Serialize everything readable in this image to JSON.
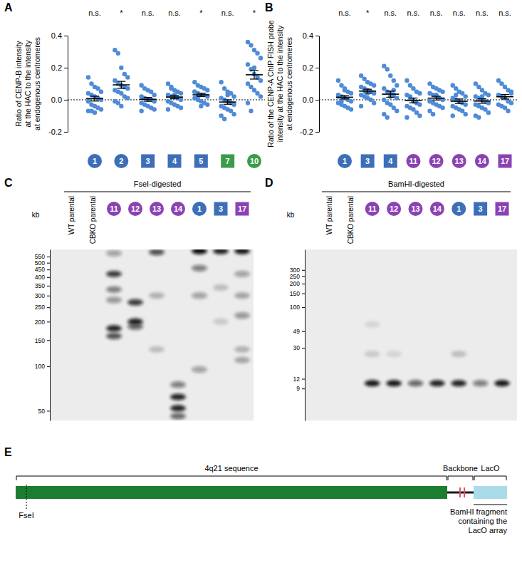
{
  "chart_data": [
    {
      "panel": "A",
      "type": "scatter",
      "color": "#4f8bd6",
      "y_label": [
        "Ratio of CENP-B intensity",
        "at the HAC to the intensity",
        "at endogenous centromeres"
      ],
      "ylim": [
        -0.2,
        0.4
      ],
      "yticks": [
        -0.2,
        {
          "value": 0,
          "label": "0.0"
        },
        0.2,
        0.4
      ],
      "reference_line": 0,
      "series": [
        {
          "name": "1",
          "color": "#3c6fb8",
          "marker": "circle",
          "significance": "n.s.",
          "mean": 0.007,
          "sem": 0.015,
          "values": [
            0.14,
            0.1,
            0.08,
            0.07,
            0.05,
            0.04,
            0.03,
            0.02,
            0.01,
            0.0,
            -0.01,
            -0.03,
            -0.04,
            -0.05,
            -0.06,
            -0.07,
            -0.07,
            -0.08
          ]
        },
        {
          "name": "2",
          "color": "#3c6fb8",
          "marker": "circle",
          "significance": "*",
          "mean": 0.093,
          "sem": 0.022,
          "values": [
            0.31,
            0.29,
            0.2,
            0.16,
            0.14,
            0.12,
            0.1,
            0.09,
            0.08,
            0.07,
            0.06,
            0.05,
            0.04,
            0.02,
            0.01,
            -0.01,
            -0.02,
            -0.04
          ]
        },
        {
          "name": "3",
          "color": "#3c6fb8",
          "marker": "square",
          "significance": "n.s.",
          "mean": 0.003,
          "sem": 0.012,
          "values": [
            0.09,
            0.07,
            0.06,
            0.05,
            0.03,
            0.02,
            0.01,
            0.0,
            0.0,
            -0.01,
            -0.02,
            -0.03,
            -0.04,
            -0.05,
            -0.06,
            -0.07
          ]
        },
        {
          "name": "4",
          "color": "#3c6fb8",
          "marker": "square",
          "significance": "n.s.",
          "mean": 0.017,
          "sem": 0.011,
          "values": [
            0.1,
            0.08,
            0.06,
            0.05,
            0.04,
            0.03,
            0.02,
            0.02,
            0.01,
            0.0,
            -0.01,
            -0.02,
            -0.03,
            -0.04,
            -0.05,
            -0.06,
            0.07,
            0.03
          ]
        },
        {
          "name": "5",
          "color": "#3c6fb8",
          "marker": "square",
          "significance": "*",
          "mean": 0.031,
          "sem": 0.01,
          "values": [
            0.11,
            0.09,
            0.08,
            0.07,
            0.06,
            0.05,
            0.04,
            0.03,
            0.03,
            0.02,
            0.01,
            0.0,
            -0.01,
            -0.02,
            -0.03,
            0.05,
            0.02,
            -0.04
          ]
        },
        {
          "name": "7",
          "color": "#3a9c48",
          "marker": "square",
          "significance": "n.s.",
          "mean": -0.014,
          "sem": 0.014,
          "values": [
            0.11,
            0.07,
            0.05,
            0.04,
            0.02,
            0.01,
            0.0,
            -0.01,
            -0.02,
            -0.03,
            -0.04,
            -0.05,
            -0.06,
            -0.07,
            -0.09,
            -0.1,
            -0.12,
            0.03
          ]
        },
        {
          "name": "10",
          "color": "#3a9c48",
          "marker": "circle",
          "significance": "*",
          "mean": 0.156,
          "sem": 0.027,
          "values": [
            0.36,
            0.34,
            0.31,
            0.29,
            0.26,
            0.22,
            0.19,
            0.16,
            0.14,
            0.12,
            0.1,
            0.08,
            0.06,
            0.04,
            0.02,
            -0.02,
            -0.07,
            0.2
          ]
        }
      ]
    },
    {
      "panel": "B",
      "type": "scatter",
      "color": "#4f8bd6",
      "y_label": [
        "Ratio of the CENP-A ChIP FISH probe",
        "intensity at the HAC to the intensity",
        "at endogenous centromeres"
      ],
      "ylim": [
        -0.2,
        0.4
      ],
      "yticks": [
        -0.2,
        {
          "value": 0,
          "label": "0.0"
        },
        0.2,
        0.4
      ],
      "reference_line": 0,
      "series": [
        {
          "name": "1",
          "color": "#3c6fb8",
          "marker": "circle",
          "significance": "n.s.",
          "mean": 0.016,
          "sem": 0.011,
          "values": [
            0.12,
            0.09,
            0.07,
            0.05,
            0.04,
            0.03,
            0.02,
            0.01,
            0.0,
            -0.01,
            -0.02,
            -0.03,
            -0.04,
            -0.05,
            -0.06,
            0.02,
            -0.01,
            0.06
          ]
        },
        {
          "name": "3",
          "color": "#3c6fb8",
          "marker": "square",
          "significance": "*",
          "mean": 0.054,
          "sem": 0.012,
          "values": [
            0.15,
            0.13,
            0.11,
            0.1,
            0.09,
            0.08,
            0.07,
            0.06,
            0.05,
            0.04,
            0.03,
            0.02,
            0.01,
            0.0,
            -0.02,
            -0.04,
            0.06,
            0.04
          ]
        },
        {
          "name": "4",
          "color": "#3c6fb8",
          "marker": "square",
          "significance": "n.s.",
          "mean": 0.035,
          "sem": 0.019,
          "values": [
            0.21,
            0.19,
            0.15,
            0.12,
            0.09,
            0.07,
            0.05,
            0.04,
            0.03,
            0.01,
            0.0,
            -0.02,
            -0.03,
            -0.05,
            -0.07,
            -0.09,
            -0.11,
            0.02,
            0.06
          ]
        },
        {
          "name": "11",
          "color": "#8b42b3",
          "marker": "circle",
          "significance": "n.s.",
          "mean": -0.004,
          "sem": 0.015,
          "values": [
            0.12,
            0.09,
            0.07,
            0.05,
            0.04,
            0.03,
            0.01,
            0.0,
            -0.02,
            -0.03,
            -0.04,
            -0.05,
            -0.06,
            -0.08,
            -0.1,
            -0.11,
            0.02,
            -0.01
          ]
        },
        {
          "name": "12",
          "color": "#8b42b3",
          "marker": "circle",
          "significance": "n.s.",
          "mean": 0.01,
          "sem": 0.012,
          "values": [
            0.1,
            0.08,
            0.07,
            0.06,
            0.05,
            0.04,
            0.03,
            0.02,
            0.01,
            0.0,
            -0.01,
            -0.02,
            -0.03,
            -0.04,
            -0.05,
            -0.07,
            -0.09,
            0.03
          ]
        },
        {
          "name": "13",
          "color": "#8b42b3",
          "marker": "circle",
          "significance": "n.s.",
          "mean": -0.009,
          "sem": 0.014,
          "values": [
            0.09,
            0.07,
            0.05,
            0.04,
            0.02,
            0.01,
            0.0,
            -0.01,
            -0.02,
            -0.03,
            -0.04,
            -0.05,
            -0.06,
            -0.07,
            -0.09,
            -0.1,
            0.03
          ]
        },
        {
          "name": "14",
          "color": "#8b42b3",
          "marker": "circle",
          "significance": "n.s.",
          "mean": -0.008,
          "sem": 0.014,
          "values": [
            0.1,
            0.08,
            0.06,
            0.04,
            0.03,
            0.02,
            0.01,
            0.0,
            -0.01,
            -0.02,
            -0.03,
            -0.04,
            -0.05,
            -0.06,
            -0.08,
            -0.1,
            -0.11,
            0.02
          ]
        },
        {
          "name": "17",
          "color": "#8b42b3",
          "marker": "square",
          "significance": "n.s.",
          "mean": 0.019,
          "sem": 0.014,
          "values": [
            0.12,
            0.1,
            0.08,
            0.06,
            0.04,
            0.03,
            0.02,
            0.01,
            -0.01,
            -0.02,
            -0.03,
            -0.04,
            -0.05,
            -0.07,
            0.05
          ]
        }
      ]
    },
    {
      "panel": "C",
      "type": "gel",
      "title": "FseI-digested",
      "y_label": "kb",
      "log": "y",
      "color": "#111111",
      "ylim": [
        43,
        615
      ],
      "yticks": [
        550,
        500,
        450,
        400,
        350,
        300,
        250,
        200,
        150,
        100,
        50
      ],
      "series": [
        {
          "name": "WT parental",
          "values": [],
          "intensity": []
        },
        {
          "name": "CBKO parental",
          "values": [],
          "intensity": []
        },
        {
          "name": "11",
          "color": "#8b42b3",
          "marker": "circle",
          "values": [
            580,
            420,
            330,
            280,
            180,
            160
          ],
          "intensity": [
            0.35,
            0.8,
            0.5,
            0.4,
            0.9,
            0.7
          ]
        },
        {
          "name": "12",
          "color": "#8b42b3",
          "marker": "circle",
          "values": [
            270,
            200,
            185
          ],
          "intensity": [
            0.8,
            0.9,
            0.6
          ]
        },
        {
          "name": "13",
          "color": "#8b42b3",
          "marker": "circle",
          "values": [
            590,
            300,
            130
          ],
          "intensity": [
            0.7,
            0.25,
            0.2
          ]
        },
        {
          "name": "14",
          "color": "#8b42b3",
          "marker": "circle",
          "values": [
            75,
            62,
            52,
            46
          ],
          "intensity": [
            0.5,
            0.9,
            0.9,
            0.6
          ]
        },
        {
          "name": "1",
          "color": "#3c6fb8",
          "marker": "circle",
          "values": [
            600,
            460,
            300,
            95
          ],
          "intensity": [
            1,
            0.5,
            0.35,
            0.35
          ]
        },
        {
          "name": "3",
          "color": "#3c6fb8",
          "marker": "square",
          "values": [
            600,
            340,
            200
          ],
          "intensity": [
            0.9,
            0.2,
            0.15
          ]
        },
        {
          "name": "17",
          "color": "#8b42b3",
          "marker": "square",
          "values": [
            600,
            420,
            300,
            220,
            130,
            110
          ],
          "intensity": [
            0.95,
            0.35,
            0.3,
            0.4,
            0.25,
            0.3
          ]
        }
      ]
    },
    {
      "panel": "D",
      "type": "gel",
      "title": "BamHI-digested",
      "y_label": "kb",
      "log": "y",
      "color": "#111111",
      "ylim": [
        3.5,
        550
      ],
      "yticks": [
        300,
        250,
        200,
        150,
        100,
        49,
        30,
        12,
        9
      ],
      "series": [
        {
          "name": "WT parental",
          "values": [],
          "intensity": []
        },
        {
          "name": "CBKO parental",
          "values": [],
          "intensity": []
        },
        {
          "name": "11",
          "color": "#8b42b3",
          "marker": "circle",
          "values": [
            10.5,
            60,
            25
          ],
          "intensity": [
            0.95,
            0.1,
            0.15
          ]
        },
        {
          "name": "12",
          "color": "#8b42b3",
          "marker": "circle",
          "values": [
            10.5,
            25
          ],
          "intensity": [
            0.95,
            0.1
          ]
        },
        {
          "name": "13",
          "color": "#8b42b3",
          "marker": "circle",
          "values": [
            10.5
          ],
          "intensity": [
            0.6
          ]
        },
        {
          "name": "14",
          "color": "#8b42b3",
          "marker": "circle",
          "values": [
            10.5
          ],
          "intensity": [
            0.9
          ]
        },
        {
          "name": "1",
          "color": "#3c6fb8",
          "marker": "circle",
          "values": [
            10.5,
            25
          ],
          "intensity": [
            0.9,
            0.2
          ]
        },
        {
          "name": "3",
          "color": "#3c6fb8",
          "marker": "square",
          "values": [
            10.5
          ],
          "intensity": [
            0.5
          ]
        },
        {
          "name": "17",
          "color": "#8b42b3",
          "marker": "square",
          "values": [
            10.5
          ],
          "intensity": [
            0.95
          ]
        }
      ]
    }
  ],
  "diagram": {
    "panel": "E",
    "segments": [
      {
        "label": "4q21 sequence",
        "color": "#1b7d2f"
      },
      {
        "label": "Backbone",
        "color": "#1a1a1a"
      },
      {
        "label": "LacO",
        "color": "#a9dbe8"
      }
    ],
    "site": "FseI",
    "fragment": [
      "BamHI fragment",
      "containing the",
      "LacO array"
    ]
  }
}
